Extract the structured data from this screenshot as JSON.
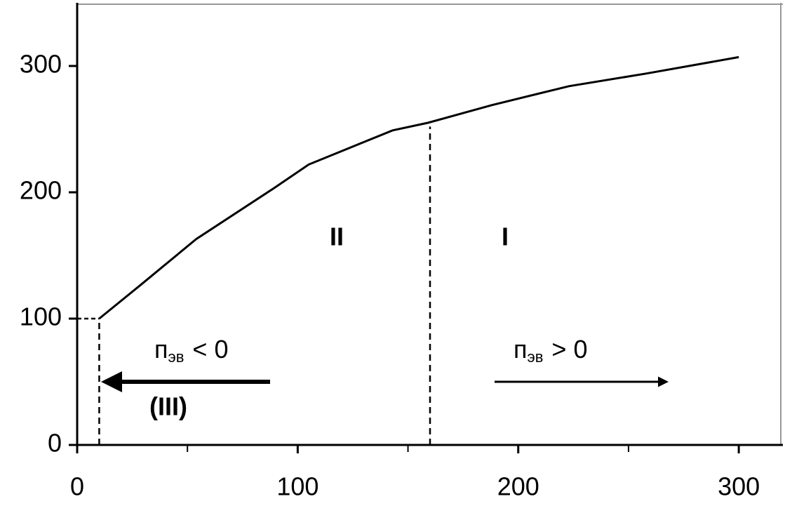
{
  "chart_data": {
    "type": "line",
    "x": [
      10,
      29,
      54,
      89,
      105,
      143,
      159,
      188,
      223,
      258,
      300
    ],
    "series": [
      {
        "color": "#000000",
        "values": [
          100,
          127,
          163,
          203,
          222,
          249,
          255,
          269,
          284,
          294,
          307
        ]
      }
    ],
    "xlim": [
      0,
      320
    ],
    "ylim": [
      0,
      350
    ],
    "xticks": [
      0,
      100,
      200,
      300
    ],
    "xminorticks": [
      50,
      150,
      250
    ],
    "yticks": [
      0,
      100,
      200,
      300
    ],
    "reference_lines": [
      {
        "x": 10,
        "y": 100
      },
      {
        "x": 160,
        "y": 252
      }
    ],
    "annotations": {
      "region_2": "II",
      "region_1": "I",
      "region_3": "(III)",
      "left_n": "п",
      "left_sub": "эв",
      "left_rel": "< 0",
      "right_n": "п",
      "right_sub": "эв",
      "right_rel": "> 0"
    }
  }
}
